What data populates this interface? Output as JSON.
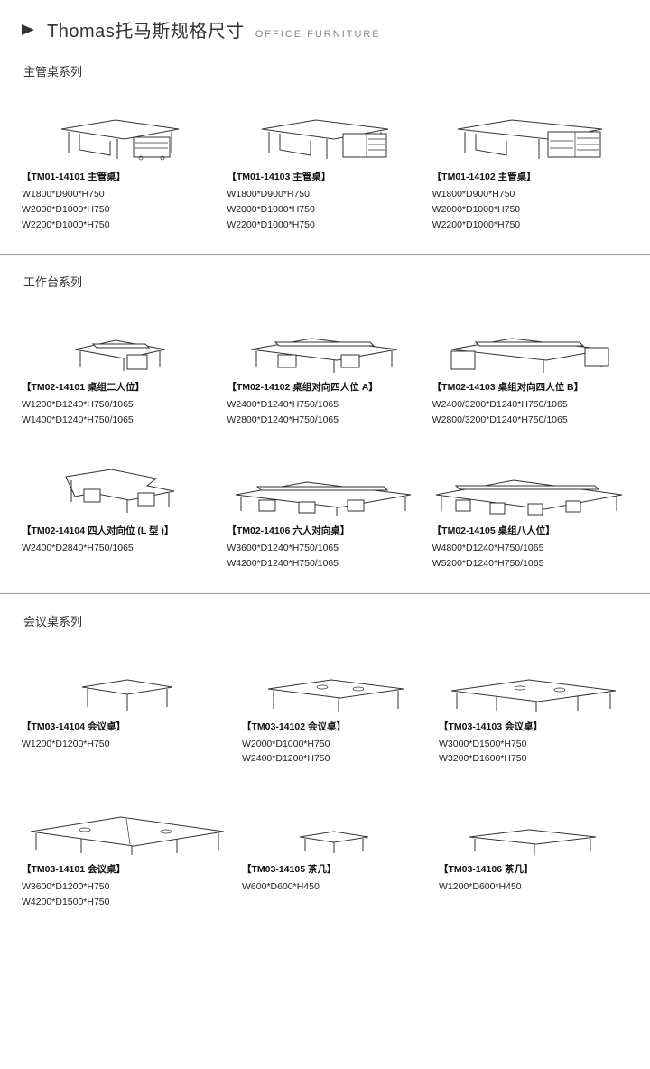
{
  "header": {
    "title": "Thomas托马斯规格尺寸",
    "subtitle": "OFFICE FURNITURE"
  },
  "sections": [
    {
      "title": "主管桌系列",
      "items": [
        {
          "title": "【TM01-14101 主管桌】",
          "specs": [
            "W1800*D900*H750",
            "W2000*D1000*H750",
            "W2200*D1000*H750"
          ],
          "svg": "desk-exec-1"
        },
        {
          "title": "【TM01-14103 主管桌】",
          "specs": [
            "W1800*D900*H750",
            "W2000*D1000*H750",
            "W2200*D1000*H750"
          ],
          "svg": "desk-exec-2"
        },
        {
          "title": "【TM01-14102 主管桌】",
          "specs": [
            "W1800*D900*H750",
            "W2000*D1000*H750",
            "W2200*D1000*H750"
          ],
          "svg": "desk-exec-3"
        }
      ]
    },
    {
      "title": "工作台系列",
      "items": [
        {
          "title": "【TM02-14101 桌组二人位】",
          "specs": [
            "W1200*D1240*H750/1065",
            "W1400*D1240*H750/1065"
          ],
          "svg": "work-2"
        },
        {
          "title": "【TM02-14102 桌组对向四人位 A】",
          "specs": [
            "W2400*D1240*H750/1065",
            "W2800*D1240*H750/1065"
          ],
          "svg": "work-4a"
        },
        {
          "title": "【TM02-14103 桌组对向四人位 B】",
          "specs": [
            "W2400/3200*D1240*H750/1065",
            "W2800/3200*D1240*H750/1065"
          ],
          "svg": "work-4b"
        },
        {
          "title": "【TM02-14104 四人对向位 (L 型 )】",
          "specs": [
            "W2400*D2840*H750/1065"
          ],
          "svg": "work-L"
        },
        {
          "title": "【TM02-14106 六人对向桌】",
          "specs": [
            "W3600*D1240*H750/1065",
            "W4200*D1240*H750/1065"
          ],
          "svg": "work-6"
        },
        {
          "title": "【TM02-14105 桌组八人位】",
          "specs": [
            "W4800*D1240*H750/1065",
            "W5200*D1240*H750/1065"
          ],
          "svg": "work-8"
        }
      ]
    },
    {
      "title": "会议桌系列",
      "items": [
        {
          "title": "【TM03-14104 会议桌】",
          "specs": [
            "W1200*D1200*H750"
          ],
          "svg": "conf-sq"
        },
        {
          "title": "【TM03-14102 会议桌】",
          "specs": [
            "W2000*D1000*H750",
            "W2400*D1200*H750"
          ],
          "svg": "conf-med"
        },
        {
          "title": "【TM03-14103 会议桌】",
          "specs": [
            "W3000*D1500*H750",
            "W3200*D1600*H750"
          ],
          "svg": "conf-long"
        },
        {
          "title": "【TM03-14101 会议桌】",
          "specs": [
            "W3600*D1200*H750",
            "W4200*D1500*H750"
          ],
          "svg": "conf-xl"
        },
        {
          "title": "【TM03-14105 茶几】",
          "specs": [
            "W600*D600*H450"
          ],
          "svg": "tea-sm"
        },
        {
          "title": "【TM03-14106 茶几】",
          "specs": [
            "W1200*D600*H450"
          ],
          "svg": "tea-lg"
        }
      ]
    }
  ]
}
